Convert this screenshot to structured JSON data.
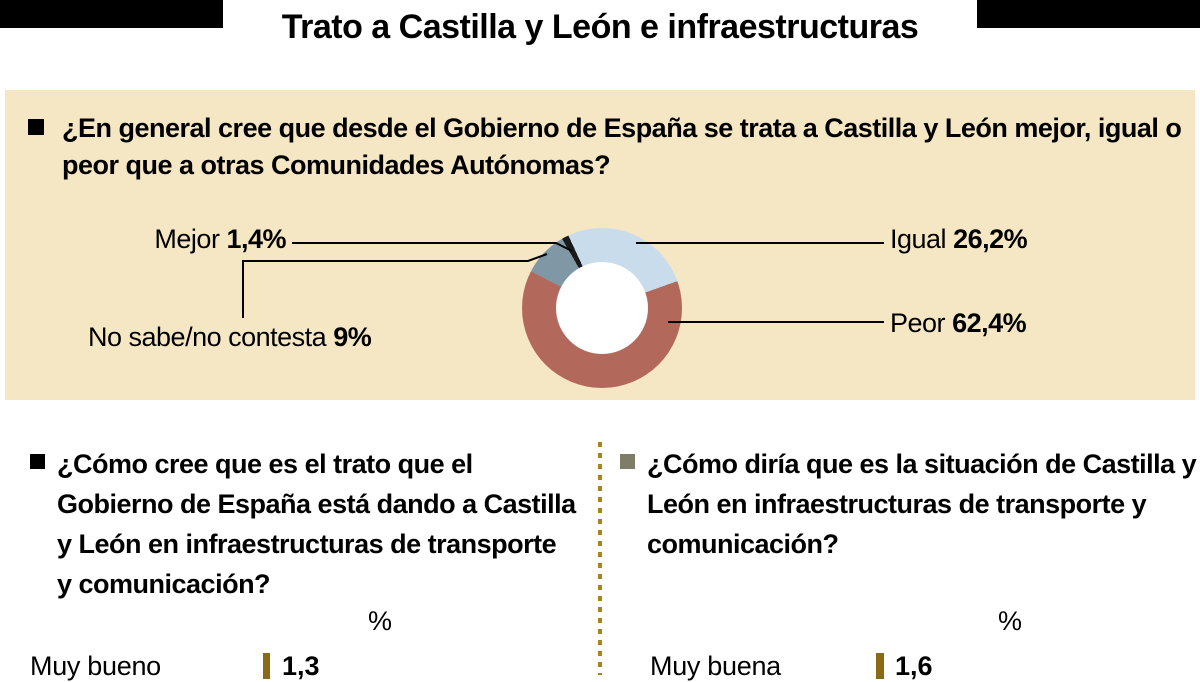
{
  "header": {
    "title": "Trato a Castilla y León e infraestructuras"
  },
  "chart_data": [
    {
      "type": "pie",
      "donut": true,
      "title": "¿En general cree que desde el Gobierno de España se trata a Castilla y León mejor, igual o peor que a otras Comunidades Autónomas?",
      "labels": [
        "Mejor",
        "Igual",
        "Peor",
        "No sabe/no contesta"
      ],
      "values": [
        1.4,
        26.2,
        62.4,
        9
      ],
      "display_values": [
        "1,4%",
        "26,2%",
        "62,4%",
        "9%"
      ],
      "colors": [
        "#1a1a1a",
        "#c9dcec",
        "#b2695c",
        "#8097a6"
      ],
      "start_angle_deg": 330,
      "legend_position": "callout-labels"
    },
    {
      "type": "bar",
      "orientation": "horizontal",
      "title": "¿Cómo cree que es el trato que el Gobierno de España está dando a Castilla y León en infraestructuras de transporte y comunicación?",
      "unit": "%",
      "categories": [
        "Muy bueno"
      ],
      "values": [
        1.3
      ],
      "display_values": [
        "1,3"
      ],
      "bar_color": "#8a6a12"
    },
    {
      "type": "bar",
      "orientation": "horizontal",
      "title": "¿Cómo diría que es la situación de Castilla y León en infraestructuras de transporte y comunicación?",
      "unit": "%",
      "categories": [
        "Muy buena"
      ],
      "values": [
        1.6
      ],
      "display_values": [
        "1,6"
      ],
      "bar_color": "#8a6a12"
    }
  ]
}
